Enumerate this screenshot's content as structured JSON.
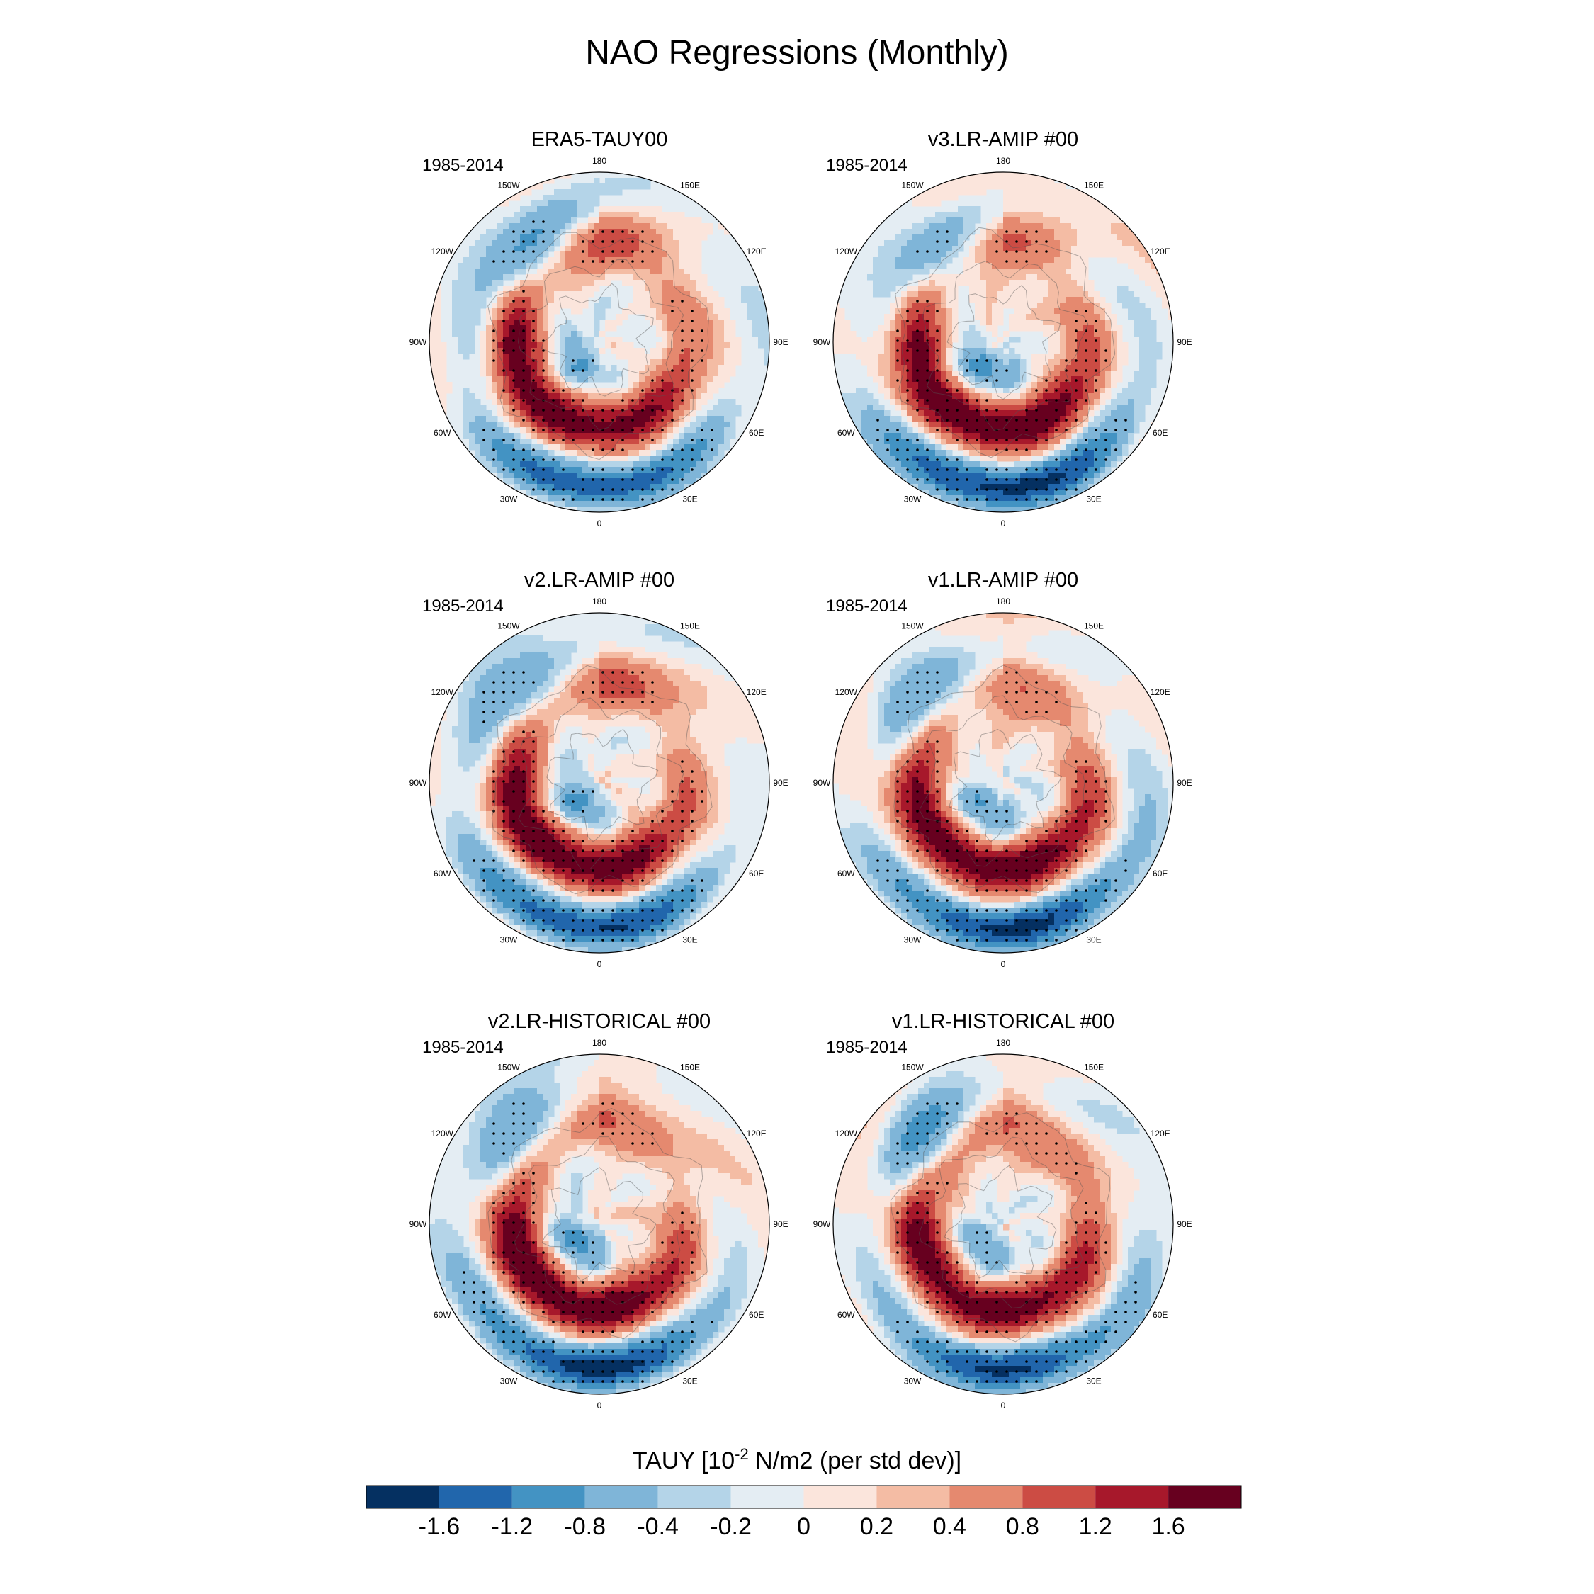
{
  "figure": {
    "title": "NAO Regressions (Monthly)"
  },
  "panels": [
    {
      "title": "ERA5-TAUY00",
      "period": "1985-2014",
      "variant": 0
    },
    {
      "title": "v3.LR-AMIP  #00",
      "period": "1985-2014",
      "variant": 1
    },
    {
      "title": "v2.LR-AMIP  #00",
      "period": "1985-2014",
      "variant": 2
    },
    {
      "title": "v1.LR-AMIP  #00",
      "period": "1985-2014",
      "variant": 3
    },
    {
      "title": "v2.LR-HISTORICAL  #00",
      "period": "1985-2014",
      "variant": 4
    },
    {
      "title": "v1.LR-HISTORICAL  #00",
      "period": "1985-2014",
      "variant": 5
    }
  ],
  "longitude_labels": [
    "180",
    "150E",
    "120E",
    "90E",
    "60E",
    "30E",
    "0",
    "30W",
    "60W",
    "90W",
    "120W",
    "150W"
  ],
  "colorbar": {
    "title_prefix": "TAUY [10",
    "title_exponent": "-2",
    "title_suffix": " N/m2 (per std dev)]",
    "colors": [
      "#053061",
      "#2166ac",
      "#4393c3",
      "#7fb5d8",
      "#b4d4e8",
      "#e4edf3",
      "#fbe5dc",
      "#f4bca4",
      "#e5896f",
      "#cc4c44",
      "#a7182b",
      "#67001f"
    ],
    "ticks": [
      "-1.6",
      "-1.2",
      "-0.8",
      "-0.4",
      "-0.2",
      "0",
      "0.2",
      "0.4",
      "0.8",
      "1.2",
      "1.6"
    ]
  },
  "chart_data": {
    "type": "heatmap",
    "title": "NAO Regressions (Monthly)",
    "projection": "north polar stereographic",
    "variable": "TAUY",
    "units": "10^-2 N/m2 (per std dev)",
    "levels": [
      -1.6,
      -1.2,
      -0.8,
      -0.4,
      -0.2,
      0,
      0.2,
      0.4,
      0.8,
      1.2,
      1.6
    ],
    "panels": [
      "ERA5-TAUY00",
      "v3.LR-AMIP  #00",
      "v2.LR-AMIP  #00",
      "v1.LR-AMIP  #00",
      "v2.LR-HISTORICAL  #00",
      "v1.LR-HISTORICAL  #00"
    ],
    "period": "1985-2014",
    "stippling": "dots mark regions of significance",
    "features": {
      "positive_ring": "strong positive (red) band across North Atlantic / Europe between ~40N-65N, peaking > 1.6",
      "negative_south": "negative (blue) values over subtropical Atlantic near 0 longitude, down to about -1.6",
      "negative_pacific": "negative values over the North Pacific around 150W",
      "positive_pacific": "positive values near the date line 180"
    }
  }
}
